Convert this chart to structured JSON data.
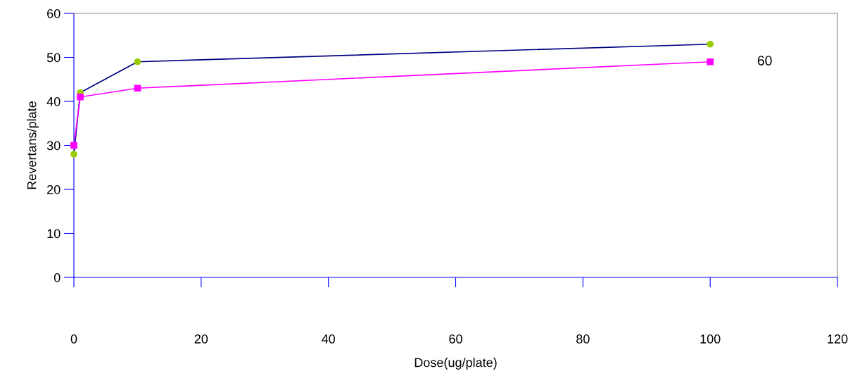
{
  "chart_data": {
    "type": "line",
    "xlabel": "Dose(ug/plate)",
    "ylabel": "Revertans/plate",
    "series": [
      {
        "color": "#000080",
        "colors": [
          "#99cc00",
          "#99cc00",
          "#99cc00",
          "#99cc00"
        ],
        "marker": "circle",
        "x": [
          0,
          1,
          10,
          100
        ],
        "values": [
          28,
          42,
          49,
          53
        ]
      },
      {
        "name": "60",
        "color": "#ff00ff",
        "colors": [
          "#ff00ff",
          "#ff00ff",
          "#ff00ff",
          "#ff00ff"
        ],
        "marker": "square",
        "x": [
          0,
          1,
          10,
          100
        ],
        "values": [
          30,
          41,
          43,
          49
        ]
      }
    ],
    "xlim": [
      0,
      120
    ],
    "xticks": [
      0,
      20,
      40,
      60,
      80,
      100,
      120
    ],
    "ylim": [
      0,
      60
    ],
    "yticks": [
      0,
      10,
      20,
      30,
      40,
      50,
      60
    ],
    "grid": false,
    "line_style": "solid"
  }
}
